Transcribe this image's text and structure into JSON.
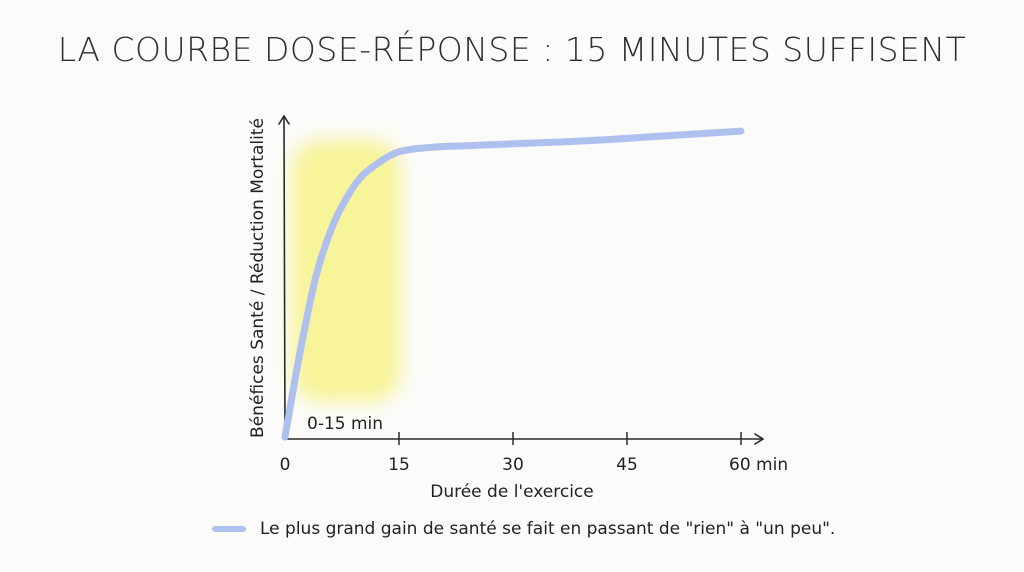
{
  "colors": {
    "curve": "#aec0ee",
    "highlight": "#f7f38a",
    "axis": "#2a2a2a",
    "background": "#fbfbf9"
  },
  "chart_data": {
    "type": "line",
    "title": "LA COURBE DOSE-RÉPONSE : 15 MINUTES SUFFISENT",
    "xlabel": "Durée de l'exercice",
    "ylabel": "Bénéfices Santé / Réduction Mortalité",
    "xlim": [
      0,
      60
    ],
    "ylim": [
      0,
      100
    ],
    "grid": false,
    "xticks": [
      {
        "value": 0,
        "label": "0"
      },
      {
        "value": 15,
        "label": "15"
      },
      {
        "value": 30,
        "label": "30"
      },
      {
        "value": 45,
        "label": "45"
      },
      {
        "value": 60,
        "label": "60 min"
      }
    ],
    "highlight_band": {
      "x_start": 0,
      "x_end": 15,
      "label": "0-15 min"
    },
    "series": [
      {
        "x": [
          0,
          2,
          4,
          6,
          8,
          10,
          12,
          14,
          16,
          20,
          25,
          30,
          40,
          50,
          60
        ],
        "y": [
          0,
          27,
          50,
          65,
          75,
          82,
          86,
          89,
          90.5,
          91.5,
          92,
          92.5,
          93.5,
          95,
          96.5
        ]
      }
    ],
    "legend": {
      "position": "bottom",
      "entries": [
        "Le plus grand gain de santé se fait en passant de \"rien\" à \"un peu\"."
      ]
    }
  }
}
